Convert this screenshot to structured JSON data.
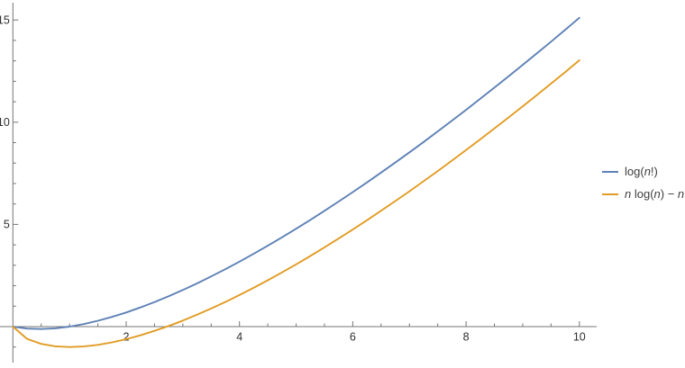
{
  "figure": {
    "background": "#ffffff",
    "axis_color": "#757575",
    "tick_label_color": "#303030"
  },
  "chart_data": {
    "type": "line",
    "title": "",
    "xlabel": "",
    "ylabel": "",
    "xlim": [
      0,
      10.3
    ],
    "ylim": [
      -1.76,
      15.84
    ],
    "x_ticks": [
      2,
      4,
      6,
      8,
      10
    ],
    "y_ticks": [
      5,
      10,
      15
    ],
    "x_minor_step": 0.5,
    "y_minor_step": 1,
    "grid": false,
    "legend_position": "right",
    "x": [
      0,
      0.25,
      0.5,
      0.75,
      1,
      1.25,
      1.5,
      1.75,
      2,
      2.25,
      2.5,
      2.75,
      3,
      3.25,
      3.5,
      3.75,
      4,
      4.25,
      4.5,
      4.75,
      5,
      5.25,
      5.5,
      5.75,
      6,
      6.25,
      6.5,
      6.75,
      7,
      7.25,
      7.5,
      7.75,
      8,
      8.25,
      8.5,
      8.75,
      9,
      9.25,
      9.5,
      9.75,
      10
    ],
    "series": [
      {
        "name": "log(n!)",
        "color": "#5e81b5",
        "values": [
          0,
          -0.098,
          -0.121,
          -0.084,
          0,
          0.125,
          0.285,
          0.475,
          0.693,
          0.936,
          1.201,
          1.487,
          1.792,
          2.114,
          2.454,
          2.809,
          3.178,
          3.561,
          3.958,
          4.367,
          4.787,
          5.22,
          5.663,
          6.116,
          6.579,
          7.052,
          7.534,
          8.025,
          8.525,
          9.033,
          9.549,
          10.073,
          10.605,
          11.143,
          11.689,
          12.242,
          12.802,
          13.368,
          13.941,
          14.52,
          15.104
        ]
      },
      {
        "name": "n log(n) − n",
        "color": "#e19c24",
        "values": [
          0,
          -0.597,
          -0.847,
          -0.966,
          -1,
          -0.971,
          -0.892,
          -0.771,
          -0.614,
          -0.425,
          -0.209,
          0.032,
          0.296,
          0.581,
          0.885,
          1.207,
          1.545,
          1.899,
          2.268,
          2.651,
          3.047,
          3.456,
          3.876,
          4.308,
          4.751,
          5.204,
          5.667,
          6.139,
          6.621,
          7.112,
          7.612,
          8.12,
          8.636,
          9.159,
          9.691,
          10.229,
          10.775,
          11.328,
          11.887,
          12.453,
          13.026
        ]
      }
    ]
  }
}
